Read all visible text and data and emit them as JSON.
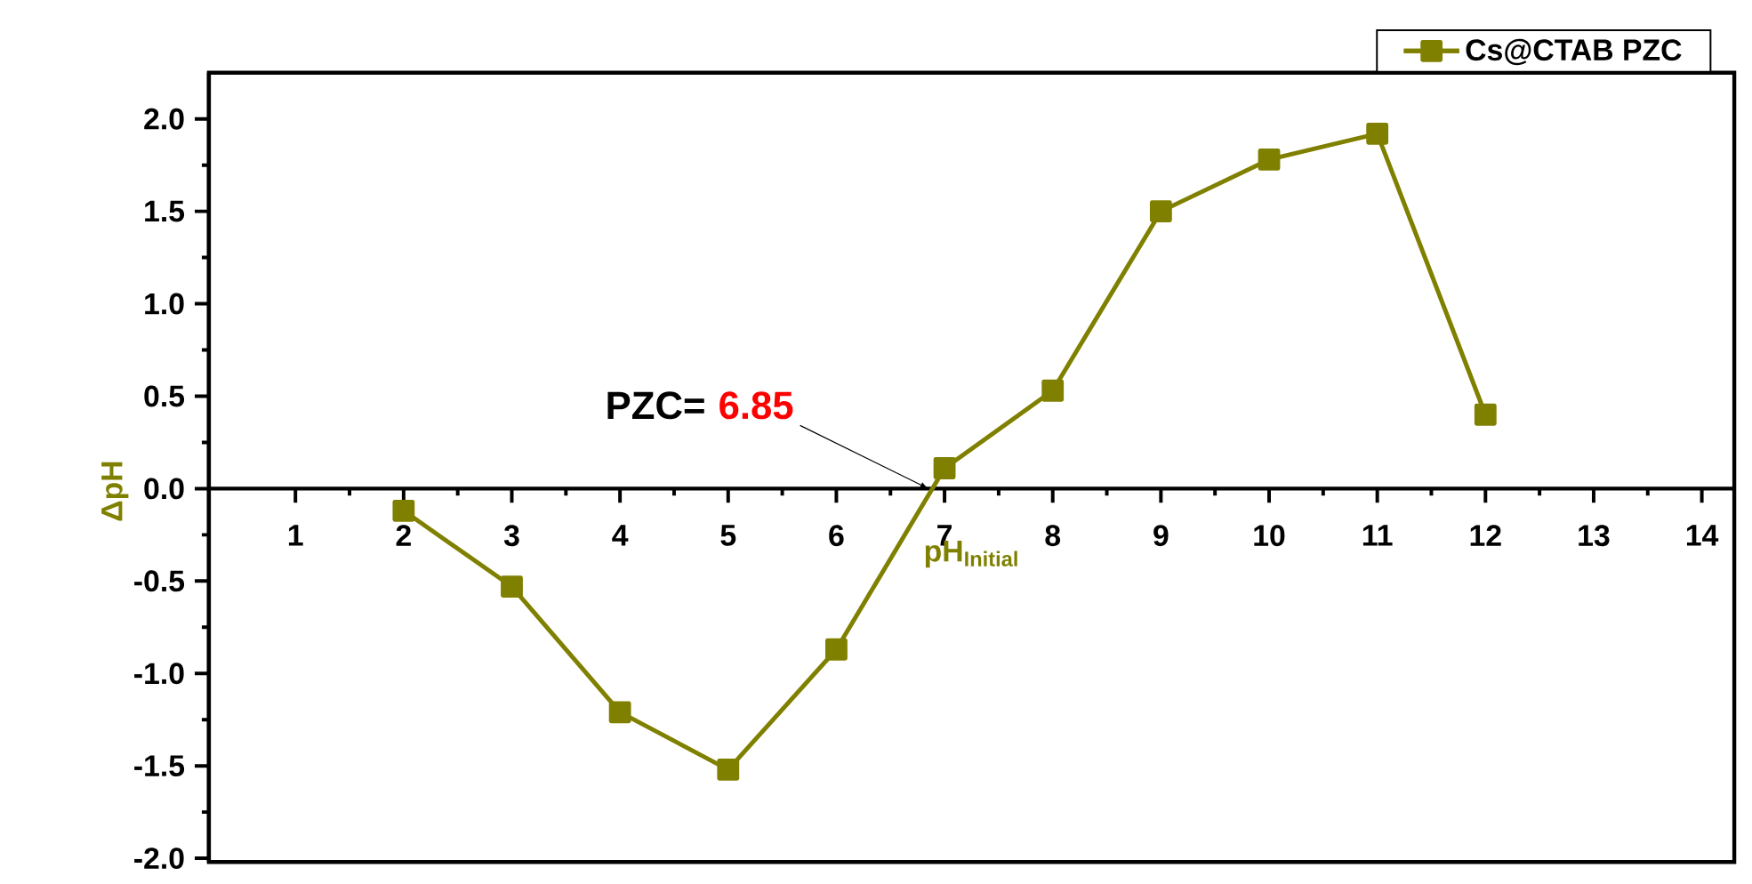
{
  "chart_data": {
    "type": "line",
    "xlabel": "pH$_{Initial}$",
    "ylabel": "ΔpH",
    "x": [
      2,
      3,
      4,
      5,
      6,
      7,
      8,
      9,
      10,
      11,
      12
    ],
    "series": [
      {
        "name": "Cs@CTAB PZC",
        "color": "#808000",
        "values": [
          -0.12,
          -0.53,
          -1.21,
          -1.52,
          -0.87,
          0.11,
          0.53,
          1.5,
          1.78,
          1.92,
          0.4
        ]
      }
    ],
    "xlim": [
      0.2,
      14.3
    ],
    "ylim": [
      -2.02,
      2.25
    ],
    "xticks": [
      1,
      2,
      3,
      4,
      5,
      6,
      7,
      8,
      9,
      10,
      11,
      12,
      13,
      14
    ],
    "yticks": [
      {
        "value": -2,
        "label": "-2.0"
      },
      {
        "value": -1.5,
        "label": "-1.5"
      },
      {
        "value": -1,
        "label": "-1.0"
      },
      {
        "value": -0.5,
        "label": "-0.5"
      },
      {
        "value": 0,
        "label": "0.0"
      },
      {
        "value": 0.5,
        "label": "0.5"
      },
      {
        "value": 1,
        "label": "1.0"
      },
      {
        "value": 1.5,
        "label": "1.5"
      },
      {
        "value": 2,
        "label": "2.0"
      }
    ],
    "marker": "square",
    "line_style": "solid",
    "legend": "top right",
    "annotations": [
      "PZC=",
      {
        "text": "6.85",
        "x": 6.85,
        "y": 0
      }
    ]
  }
}
